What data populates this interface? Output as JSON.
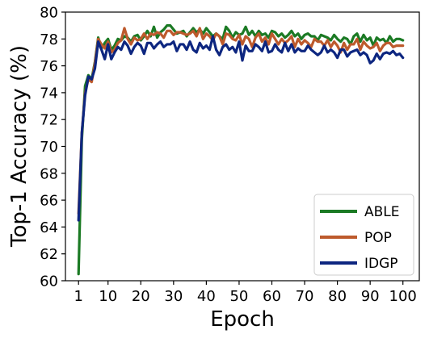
{
  "chart_data": {
    "type": "line",
    "xlabel": "Epoch",
    "ylabel": "Top-1 Accuracy (%)",
    "xlim": [
      -3,
      105
    ],
    "ylim": [
      60,
      80
    ],
    "xticks": [
      1,
      10,
      20,
      30,
      40,
      50,
      60,
      70,
      80,
      90,
      100
    ],
    "yticks": [
      60,
      62,
      64,
      66,
      68,
      70,
      72,
      74,
      76,
      78,
      80
    ],
    "grid": false,
    "legend_position": "lower-right",
    "x": [
      1,
      2,
      3,
      4,
      5,
      6,
      7,
      8,
      9,
      10,
      11,
      12,
      13,
      14,
      15,
      16,
      17,
      18,
      19,
      20,
      21,
      22,
      23,
      24,
      25,
      26,
      27,
      28,
      29,
      30,
      31,
      32,
      33,
      34,
      35,
      36,
      37,
      38,
      39,
      40,
      41,
      42,
      43,
      44,
      45,
      46,
      47,
      48,
      49,
      50,
      51,
      52,
      53,
      54,
      55,
      56,
      57,
      58,
      59,
      60,
      61,
      62,
      63,
      64,
      65,
      66,
      67,
      68,
      69,
      70,
      71,
      72,
      73,
      74,
      75,
      76,
      77,
      78,
      79,
      80,
      81,
      82,
      83,
      84,
      85,
      86,
      87,
      88,
      89,
      90,
      91,
      92,
      93,
      94,
      95,
      96,
      97,
      98,
      99,
      100
    ],
    "series": [
      {
        "name": "ABLE",
        "color": "#1b7a24",
        "values": [
          60.5,
          70.5,
          74.5,
          75.3,
          75.0,
          76.3,
          78.1,
          77.3,
          77.7,
          78.0,
          77.2,
          77.5,
          78.0,
          77.9,
          78.2,
          78.1,
          77.8,
          78.2,
          78.3,
          77.9,
          78.2,
          78.6,
          78.2,
          78.9,
          78.1,
          78.5,
          78.7,
          79.0,
          79.0,
          78.7,
          78.4,
          78.5,
          78.6,
          78.2,
          78.5,
          78.8,
          78.5,
          78.7,
          78.4,
          78.8,
          78.5,
          78.2,
          78.4,
          78.2,
          78.0,
          78.9,
          78.6,
          78.1,
          78.5,
          78.3,
          78.4,
          78.9,
          78.3,
          78.6,
          78.2,
          78.6,
          78.3,
          78.4,
          78.1,
          78.6,
          78.5,
          78.2,
          78.4,
          78.1,
          78.3,
          78.6,
          78.2,
          78.4,
          78.0,
          78.3,
          78.4,
          78.2,
          78.2,
          77.9,
          78.3,
          78.2,
          78.1,
          77.9,
          78.3,
          78.0,
          77.8,
          78.1,
          78.0,
          77.6,
          78.2,
          78.4,
          77.8,
          78.3,
          77.9,
          78.1,
          77.5,
          78.1,
          77.9,
          78.0,
          77.7,
          78.2,
          77.8,
          78.0,
          78.0,
          77.9
        ]
      },
      {
        "name": "POP",
        "color": "#bd5a2c",
        "values": [
          65.0,
          71.0,
          74.0,
          75.0,
          74.8,
          76.2,
          78.0,
          77.6,
          77.3,
          77.8,
          77.0,
          77.2,
          77.7,
          77.9,
          78.8,
          78.0,
          77.6,
          78.1,
          77.9,
          78.0,
          78.4,
          78.0,
          78.4,
          78.3,
          78.5,
          78.4,
          78.1,
          78.6,
          78.6,
          78.3,
          78.5,
          78.5,
          78.4,
          78.3,
          78.4,
          78.6,
          78.2,
          78.8,
          78.0,
          78.4,
          78.2,
          77.9,
          78.4,
          78.2,
          77.6,
          78.4,
          78.3,
          78.0,
          77.9,
          78.3,
          77.6,
          78.2,
          78.0,
          77.4,
          78.1,
          78.4,
          77.8,
          78.1,
          77.6,
          78.4,
          78.0,
          77.6,
          78.0,
          77.7,
          77.9,
          78.2,
          77.4,
          78.0,
          77.6,
          77.9,
          77.7,
          77.4,
          78.0,
          77.8,
          77.8,
          77.5,
          77.9,
          77.4,
          77.8,
          77.5,
          77.0,
          77.7,
          77.2,
          77.6,
          77.6,
          78.0,
          77.2,
          77.8,
          77.5,
          77.3,
          77.4,
          77.7,
          77.1,
          77.5,
          77.7,
          77.7,
          77.4,
          77.5,
          77.5,
          77.5
        ]
      },
      {
        "name": "IDGP",
        "color": "#0d2680",
        "values": [
          64.5,
          71.0,
          73.8,
          75.2,
          75.0,
          75.8,
          77.8,
          77.2,
          76.5,
          77.6,
          76.5,
          77.0,
          77.4,
          77.2,
          77.8,
          77.5,
          76.9,
          77.4,
          77.7,
          77.5,
          76.9,
          77.7,
          77.7,
          77.3,
          77.6,
          77.8,
          77.4,
          77.6,
          77.6,
          77.8,
          77.1,
          77.6,
          77.6,
          77.2,
          77.8,
          77.2,
          77.0,
          77.7,
          77.3,
          77.5,
          77.2,
          78.2,
          77.2,
          76.8,
          77.4,
          77.6,
          77.2,
          77.4,
          77.0,
          77.8,
          76.4,
          77.5,
          77.1,
          77.1,
          77.6,
          77.4,
          77.1,
          77.8,
          77.0,
          77.1,
          77.6,
          77.2,
          77.0,
          77.7,
          77.1,
          77.6,
          77.0,
          77.3,
          77.1,
          77.1,
          77.5,
          77.2,
          77.0,
          76.8,
          77.0,
          77.5,
          77.0,
          77.2,
          77.0,
          76.6,
          77.2,
          77.2,
          76.7,
          77.0,
          77.1,
          77.2,
          76.8,
          77.0,
          76.8,
          76.2,
          76.4,
          76.9,
          76.5,
          76.9,
          77.0,
          76.9,
          77.1,
          76.8,
          76.9,
          76.6
        ]
      }
    ]
  }
}
